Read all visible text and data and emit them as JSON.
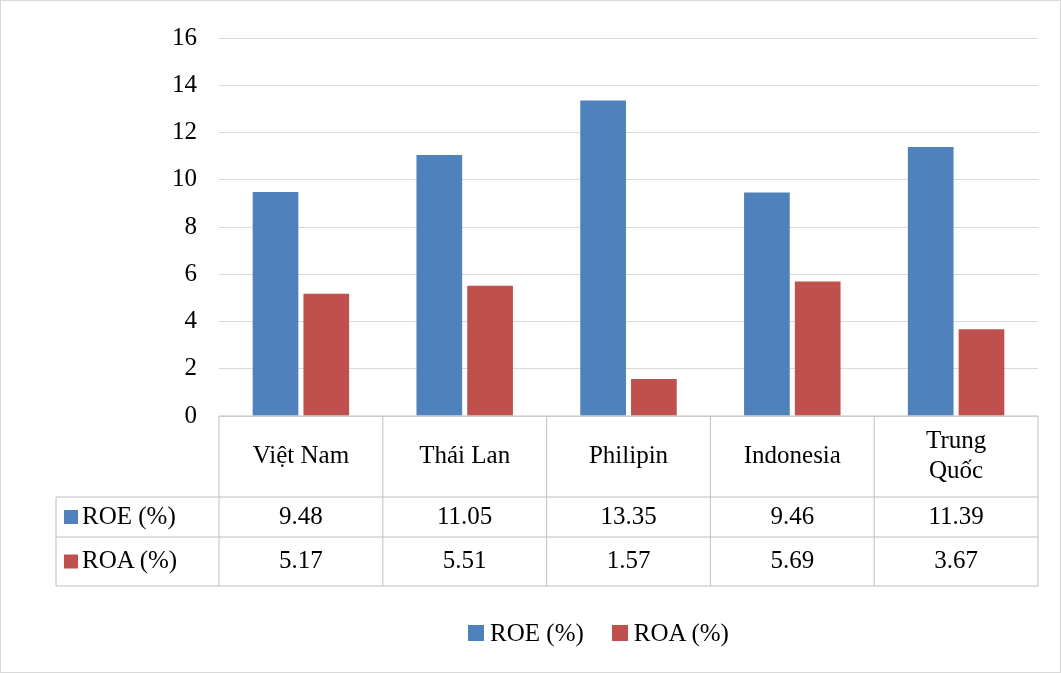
{
  "chart_data": {
    "type": "bar",
    "categories": [
      "Việt Nam",
      "Thái Lan",
      "Philipin",
      "Indonesia",
      "Trung Quốc"
    ],
    "series": [
      {
        "name": "ROE (%)",
        "color": "#4f81bd",
        "values": [
          9.48,
          11.05,
          13.35,
          9.46,
          11.39
        ]
      },
      {
        "name": "ROA (%)",
        "color": "#c0504d",
        "values": [
          5.17,
          5.51,
          1.57,
          5.69,
          3.67
        ]
      }
    ],
    "ylim": [
      0,
      16
    ],
    "yticks": [
      0,
      2,
      4,
      6,
      8,
      10,
      12,
      14,
      16
    ],
    "grid": "y",
    "legend": "bottom",
    "data_labels": true
  }
}
